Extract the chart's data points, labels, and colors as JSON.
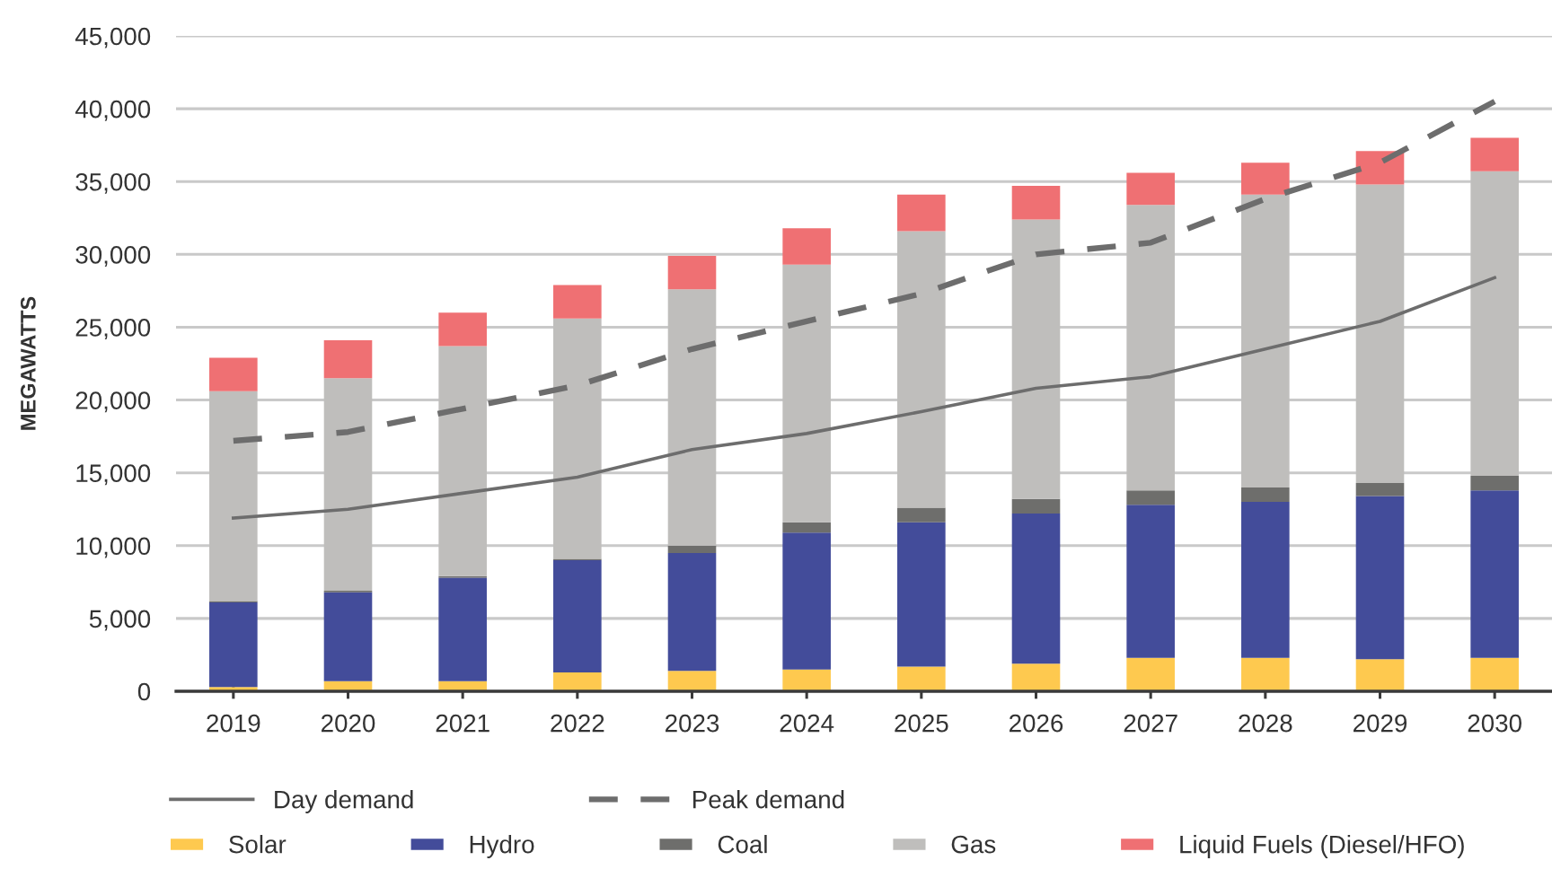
{
  "chart_data": {
    "type": "bar",
    "stacked": true,
    "ylabel": "MEGAWATTS",
    "categories": [
      "2019",
      "2020",
      "2021",
      "2022",
      "2023",
      "2024",
      "2025",
      "2026",
      "2027",
      "2028",
      "2029",
      "2030"
    ],
    "series": [
      {
        "name": "Day demand",
        "type": "line",
        "line_style": "solid",
        "color": "#6d6d6d",
        "values": [
          11900,
          12500,
          13600,
          14700,
          16600,
          17700,
          19200,
          20800,
          21600,
          23500,
          25400,
          28400
        ]
      },
      {
        "name": "Peak demand",
        "type": "line",
        "line_style": "dashed",
        "color": "#6d6d6d",
        "values": [
          17200,
          17800,
          19400,
          21000,
          23500,
          25400,
          27300,
          30000,
          30800,
          33800,
          36300,
          40500
        ]
      },
      {
        "name": "Solar",
        "color": "#fec94f",
        "values": [
          300,
          700,
          700,
          1300,
          1400,
          1500,
          1700,
          1900,
          2300,
          2300,
          2200,
          2300
        ]
      },
      {
        "name": "Hydro",
        "color": "#434c9a",
        "values": [
          5800,
          6100,
          7100,
          7700,
          8100,
          9400,
          9900,
          10300,
          10500,
          10700,
          11200,
          11500
        ]
      },
      {
        "name": "Coal",
        "color": "#6e6e6c",
        "values": [
          100,
          100,
          100,
          100,
          500,
          700,
          1000,
          1000,
          1000,
          1000,
          900,
          1000
        ]
      },
      {
        "name": "Gas",
        "color": "#bfbebc",
        "values": [
          14400,
          14600,
          15800,
          16500,
          17600,
          17700,
          19000,
          19200,
          19600,
          20100,
          20500,
          20900
        ]
      },
      {
        "name": "Liquid Fuels (Diesel/HFO)",
        "color": "#ef7073",
        "values": [
          2300,
          2600,
          2300,
          2300,
          2300,
          2500,
          2500,
          2300,
          2200,
          2200,
          2300,
          2300
        ]
      }
    ],
    "ylim": [
      0,
      45000
    ],
    "yticks": [
      {
        "value": 0,
        "label": "0"
      },
      {
        "value": 5000,
        "label": "5,000"
      },
      {
        "value": 10000,
        "label": "10,000"
      },
      {
        "value": 15000,
        "label": "15,000"
      },
      {
        "value": 20000,
        "label": "20,000"
      },
      {
        "value": 25000,
        "label": "25,000"
      },
      {
        "value": 30000,
        "label": "30,000"
      },
      {
        "value": 35000,
        "label": "35,000"
      },
      {
        "value": 40000,
        "label": "40,000"
      },
      {
        "value": 45000,
        "label": "45,000"
      }
    ],
    "grid": "y",
    "legend": "bottom"
  }
}
